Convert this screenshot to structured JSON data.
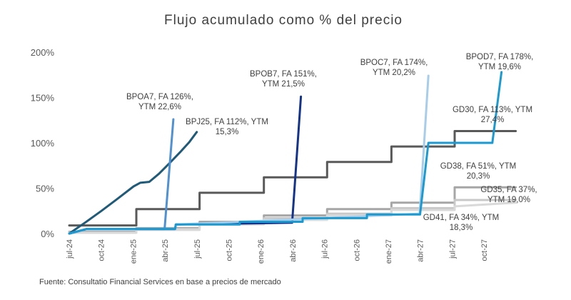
{
  "chart_data": {
    "type": "line",
    "title": "Flujo acumulado como % del precio",
    "source": "Fuente: Consultatio Financial Services en base a precios de mercado",
    "xlabel": "",
    "ylabel": "",
    "x_ticks": [
      "jul-24",
      "oct-24",
      "ene-25",
      "abr-25",
      "jul-25",
      "oct-25",
      "ene-26",
      "abr-26",
      "jul-26",
      "oct-26",
      "ene-27",
      "abr-27",
      "jul-27",
      "oct-27"
    ],
    "y_ticks": [
      "0%",
      "50%",
      "100%",
      "150%",
      "200%"
    ],
    "ylim": [
      0,
      200
    ],
    "grid": false,
    "legend": "none",
    "series": [
      {
        "name": "GD30",
        "color": "#595959",
        "label_lines": [
          "GD30, FA 113%, YTM",
          "27,4%"
        ],
        "points": [
          [
            "2024-07-01",
            9
          ],
          [
            "2025-01-09",
            9
          ],
          [
            "2025-01-09",
            27
          ],
          [
            "2025-07-09",
            27
          ],
          [
            "2025-07-09",
            45
          ],
          [
            "2026-01-09",
            45
          ],
          [
            "2026-01-09",
            62
          ],
          [
            "2026-07-09",
            62
          ],
          [
            "2026-07-09",
            79
          ],
          [
            "2027-01-09",
            79
          ],
          [
            "2027-01-09",
            96
          ],
          [
            "2027-07-09",
            96
          ],
          [
            "2027-07-09",
            113
          ],
          [
            "2027-12-31",
            113
          ]
        ]
      },
      {
        "name": "GD38",
        "color": "#a6a6a6",
        "label_lines": [
          "GD38, FA 51%, YTM",
          "20,3%"
        ],
        "points": [
          [
            "2024-07-01",
            2
          ],
          [
            "2025-01-09",
            2
          ],
          [
            "2025-01-09",
            6
          ],
          [
            "2025-07-09",
            6
          ],
          [
            "2025-07-09",
            13
          ],
          [
            "2026-01-09",
            13
          ],
          [
            "2026-01-09",
            20
          ],
          [
            "2026-07-09",
            20
          ],
          [
            "2026-07-09",
            27
          ],
          [
            "2027-01-09",
            27
          ],
          [
            "2027-01-09",
            34
          ],
          [
            "2027-07-09",
            34
          ],
          [
            "2027-07-09",
            51
          ],
          [
            "2027-12-31",
            51
          ]
        ]
      },
      {
        "name": "GD35",
        "color": "#c8c8c8",
        "label_lines": [
          "GD35, FA 37%,",
          "YTM 19,0%"
        ],
        "points": [
          [
            "2024-07-01",
            1
          ],
          [
            "2025-01-09",
            1
          ],
          [
            "2025-01-09",
            5
          ],
          [
            "2025-07-09",
            5
          ],
          [
            "2025-07-09",
            11
          ],
          [
            "2026-01-09",
            11
          ],
          [
            "2026-01-09",
            17
          ],
          [
            "2026-07-09",
            17
          ],
          [
            "2026-07-09",
            22
          ],
          [
            "2027-01-09",
            22
          ],
          [
            "2027-01-09",
            28
          ],
          [
            "2027-07-09",
            28
          ],
          [
            "2027-07-09",
            37
          ],
          [
            "2027-12-31",
            37
          ]
        ]
      },
      {
        "name": "GD41",
        "color": "#d9d9d9",
        "label_lines": [
          "GD41, FA 34%, YTM",
          "18,3%"
        ],
        "points": [
          [
            "2024-07-01",
            1
          ],
          [
            "2025-01-09",
            1
          ],
          [
            "2025-01-09",
            4
          ],
          [
            "2025-07-09",
            4
          ],
          [
            "2025-07-09",
            10
          ],
          [
            "2026-01-09",
            10
          ],
          [
            "2026-01-09",
            15
          ],
          [
            "2026-07-09",
            15
          ],
          [
            "2026-07-09",
            20
          ],
          [
            "2027-01-09",
            20
          ],
          [
            "2027-01-09",
            26
          ],
          [
            "2027-07-09",
            26
          ],
          [
            "2027-07-09",
            30
          ],
          [
            "2027-12-31",
            34
          ]
        ]
      },
      {
        "name": "BPJ25",
        "color": "#1f5a78",
        "label_lines": [
          "BPJ25, FA 112%, YTM",
          "15,3%"
        ],
        "points": [
          [
            "2024-07-01",
            0
          ],
          [
            "2024-08-15",
            12
          ],
          [
            "2024-10-01",
            25
          ],
          [
            "2024-11-15",
            38
          ],
          [
            "2025-01-01",
            52
          ],
          [
            "2025-01-20",
            56
          ],
          [
            "2025-02-15",
            57
          ],
          [
            "2025-03-15",
            66
          ],
          [
            "2025-04-15",
            78
          ],
          [
            "2025-05-15",
            90
          ],
          [
            "2025-06-10",
            101
          ],
          [
            "2025-07-01",
            112
          ]
        ]
      },
      {
        "name": "BPOA7",
        "color": "#4f91d3",
        "label_lines": [
          "BPOA7, FA 126%,",
          "YTM 22,6%"
        ],
        "points": [
          [
            "2024-07-01",
            0
          ],
          [
            "2024-08-20",
            5
          ],
          [
            "2025-03-31",
            5
          ],
          [
            "2025-04-25",
            126
          ]
        ]
      },
      {
        "name": "BPOB7",
        "color": "#13338c",
        "label_lines": [
          "BPOB7, FA 151%,",
          "YTM 21,5%"
        ],
        "points": [
          [
            "2024-07-01",
            0
          ],
          [
            "2024-08-20",
            5
          ],
          [
            "2025-04-30",
            5
          ],
          [
            "2025-05-02",
            10
          ],
          [
            "2026-03-31",
            12
          ],
          [
            "2026-04-25",
            151
          ]
        ]
      },
      {
        "name": "BPOC7",
        "color": "#a8cdea",
        "label_lines": [
          "BPOC7, FA 174%,",
          "YTM 20,2%"
        ],
        "points": [
          [
            "2024-07-01",
            0
          ],
          [
            "2024-08-20",
            5
          ],
          [
            "2025-04-30",
            5
          ],
          [
            "2025-05-02",
            10
          ],
          [
            "2026-04-30",
            16
          ],
          [
            "2027-03-31",
            22
          ],
          [
            "2027-04-25",
            174
          ]
        ]
      },
      {
        "name": "BPOD7",
        "color": "#1b9ad2",
        "label_lines": [
          "BPOD7, FA 178%,",
          "YTM 19,6%"
        ],
        "points": [
          [
            "2024-07-01",
            0
          ],
          [
            "2024-08-20",
            5
          ],
          [
            "2025-04-30",
            5
          ],
          [
            "2025-05-02",
            10
          ],
          [
            "2025-11-01",
            10
          ],
          [
            "2025-11-01",
            13
          ],
          [
            "2026-04-30",
            13
          ],
          [
            "2026-04-30",
            17
          ],
          [
            "2026-10-31",
            17
          ],
          [
            "2026-10-31",
            21
          ],
          [
            "2027-04-01",
            21
          ],
          [
            "2027-04-25",
            100
          ],
          [
            "2027-10-25",
            100
          ],
          [
            "2027-11-20",
            178
          ]
        ]
      }
    ]
  }
}
